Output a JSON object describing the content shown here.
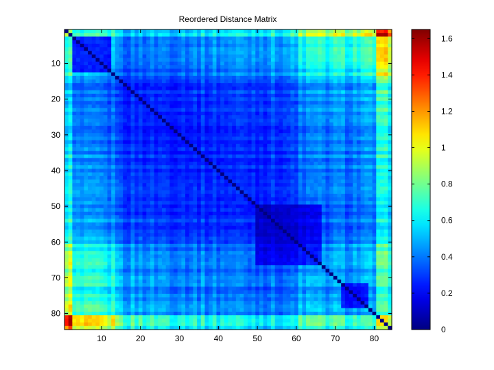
{
  "figure": {
    "background": "#ffffff"
  },
  "chart_data": {
    "type": "heatmap",
    "title": "Reordered Distance Matrix",
    "xlabel": "",
    "ylabel": "",
    "size": 84,
    "x_range": [
      1,
      84
    ],
    "y_range": [
      1,
      84
    ],
    "x_ticks": [
      10,
      20,
      30,
      40,
      50,
      60,
      70,
      80
    ],
    "y_ticks": [
      10,
      20,
      30,
      40,
      50,
      60,
      70,
      80
    ],
    "y_direction": "top-to-bottom",
    "colormap": "jet",
    "clim": [
      0,
      1.65
    ],
    "colorbar": {
      "ticks": [
        0,
        0.2,
        0.4,
        0.6,
        0.8,
        1,
        1.2,
        1.4,
        1.6
      ],
      "tick_labels": [
        "0",
        "0.2",
        "0.4",
        "0.6",
        "0.8",
        "1",
        "1.2",
        "1.4",
        "1.6"
      ],
      "placement": "right"
    },
    "structure": {
      "diagonal_value": 0.0,
      "core_block": {
        "rows": [
          15,
          60
        ],
        "typical_value": 0.28
      },
      "secondary_blocks": [
        {
          "rows": [
            3,
            12
          ],
          "typical_value": 0.3
        },
        {
          "rows": [
            50,
            66
          ],
          "typical_value": 0.2
        },
        {
          "rows": [
            72,
            78
          ],
          "typical_value": 0.1
        }
      ],
      "outlier_rows": [
        1,
        2,
        81,
        82,
        83,
        84
      ],
      "outlier_typical_value": 1.05
    }
  }
}
